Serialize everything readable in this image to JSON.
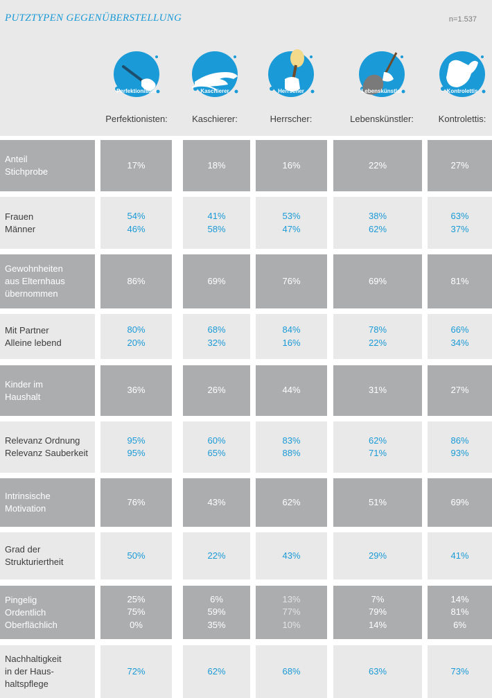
{
  "title": "PUTZTYPEN GEGENÜBERSTELLUNG",
  "sample": "n=1.537",
  "colors": {
    "accent": "#1a9ad6",
    "dark_row": "#acadaf",
    "light_row": "#e9e9ea"
  },
  "types": [
    {
      "name": "Perfektionisten:",
      "badge": "Perfektionisten",
      "icon": "hand-with-cleaning-stick-icon"
    },
    {
      "name": "Kaschierer:",
      "badge": "Kaschierer",
      "icon": "hand-wiping-surface-icon"
    },
    {
      "name": "Herrscher:",
      "badge": "Herrscher",
      "icon": "fist-with-brush-icon"
    },
    {
      "name": "Lebenskünstler:",
      "badge": "Lebenskünstler",
      "icon": "hand-with-feather-duster-icon"
    },
    {
      "name": "Kontrolettis:",
      "badge": "Kontrolettis",
      "icon": "glove-hand-icon"
    }
  ],
  "chart_data": {
    "type": "table",
    "title": "PUTZTYPEN GEGENÜBERSTELLUNG",
    "columns": [
      "Perfektionisten:",
      "Kaschierer:",
      "Herrscher:",
      "Lebenskünstler:",
      "Kontrolettis:"
    ],
    "rows": [
      {
        "labels": [
          "Anteil",
          "Stichprobe"
        ],
        "style": "dark",
        "values": [
          [
            "17%"
          ],
          [
            "18%"
          ],
          [
            "16%"
          ],
          [
            "22%"
          ],
          [
            "27%"
          ]
        ]
      },
      {
        "labels": [
          "Frauen",
          "Männer"
        ],
        "style": "light",
        "values": [
          [
            "54%",
            "46%"
          ],
          [
            "41%",
            "58%"
          ],
          [
            "53%",
            "47%"
          ],
          [
            "38%",
            "62%"
          ],
          [
            "63%",
            "37%"
          ]
        ]
      },
      {
        "labels": [
          "Gewohnheiten",
          "aus Elternhaus",
          "übernommen"
        ],
        "style": "dark",
        "values": [
          [
            "86%"
          ],
          [
            "69%"
          ],
          [
            "76%"
          ],
          [
            "69%"
          ],
          [
            "81%"
          ]
        ]
      },
      {
        "labels": [
          "Mit Partner",
          "Alleine lebend"
        ],
        "style": "light",
        "values": [
          [
            "80%",
            "20%"
          ],
          [
            "68%",
            "32%"
          ],
          [
            "84%",
            "16%"
          ],
          [
            "78%",
            "22%"
          ],
          [
            "66%",
            "34%"
          ]
        ]
      },
      {
        "labels": [
          "Kinder im",
          "Haushalt"
        ],
        "style": "dark",
        "values": [
          [
            "36%"
          ],
          [
            "26%"
          ],
          [
            "44%"
          ],
          [
            "31%"
          ],
          [
            "27%"
          ]
        ]
      },
      {
        "labels": [
          "Relevanz Ordnung",
          "Relevanz Sauberkeit"
        ],
        "style": "light",
        "values": [
          [
            "95%",
            "95%"
          ],
          [
            "60%",
            "65%"
          ],
          [
            "83%",
            "88%"
          ],
          [
            "62%",
            "71%"
          ],
          [
            "86%",
            "93%"
          ]
        ]
      },
      {
        "labels": [
          "Intrinsische",
          "Motivation"
        ],
        "style": "dark",
        "values": [
          [
            "76%"
          ],
          [
            "43%"
          ],
          [
            "62%"
          ],
          [
            "51%"
          ],
          [
            "69%"
          ]
        ]
      },
      {
        "labels": [
          "Grad der",
          "Strukturiertheit"
        ],
        "style": "light",
        "values": [
          [
            "50%"
          ],
          [
            "22%"
          ],
          [
            "43%"
          ],
          [
            "29%"
          ],
          [
            "41%"
          ]
        ]
      },
      {
        "labels": [
          "Pingelig",
          "Ordentlich",
          "Oberflächlich"
        ],
        "style": "dark",
        "dim_column": 2,
        "values": [
          [
            "25%",
            "75%",
            "0%"
          ],
          [
            "6%",
            "59%",
            "35%"
          ],
          [
            "13%",
            "77%",
            "10%"
          ],
          [
            "7%",
            "79%",
            "14%"
          ],
          [
            "14%",
            "81%",
            "6%"
          ]
        ]
      },
      {
        "labels": [
          "Nachhaltigkeit",
          "in der Haus-",
          "haltspflege"
        ],
        "style": "light",
        "values": [
          [
            "72%"
          ],
          [
            "62%"
          ],
          [
            "68%"
          ],
          [
            "63%"
          ],
          [
            "73%"
          ]
        ]
      }
    ]
  }
}
